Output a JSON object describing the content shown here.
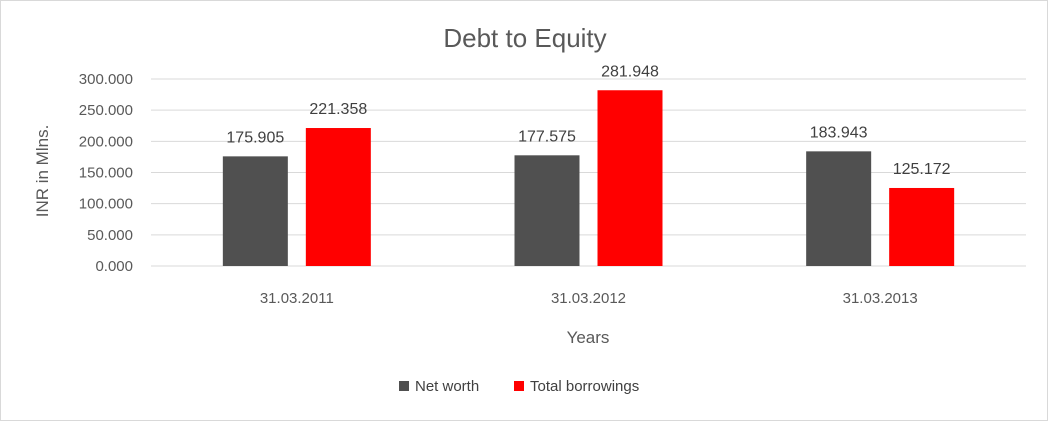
{
  "chart_data": {
    "type": "bar",
    "title": "Debt to Equity",
    "xlabel": "Years",
    "ylabel": "INR in Mlns.",
    "categories": [
      "31.03.2011",
      "31.03.2012",
      "31.03.2013"
    ],
    "series": [
      {
        "name": "Net worth",
        "color": "#505050",
        "values": [
          175.905,
          177.575,
          183.943
        ],
        "labels": [
          "175.905",
          "177.575",
          "183.943"
        ]
      },
      {
        "name": "Total borrowings",
        "color": "#ff0000",
        "values": [
          221.358,
          281.948,
          125.172
        ],
        "labels": [
          "221.358",
          "281.948",
          "125.172"
        ]
      }
    ],
    "ylim": [
      0,
      300
    ],
    "yticks": [
      "0.000",
      "50.000",
      "100.000",
      "150.000",
      "200.000",
      "250.000",
      "300.000"
    ],
    "grid": true,
    "legend_position": "bottom"
  }
}
